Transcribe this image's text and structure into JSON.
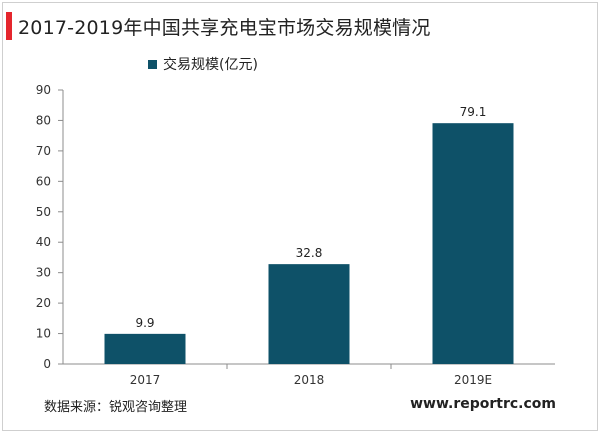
{
  "title": "2017-2019年中国共享充电宝市场交易规模情况",
  "source": "数据来源：锐观咨询整理",
  "website": "www.reportrc.com",
  "colors": {
    "bar": "#0e5168",
    "accent": "#e5262d"
  },
  "chart_data": {
    "type": "bar",
    "title": "2017-2019年中国共享充电宝市场交易规模情况",
    "categories": [
      "2017",
      "2018",
      "2019E"
    ],
    "series": [
      {
        "name": "交易规模(亿元)",
        "values": [
          9.9,
          32.8,
          79.1
        ]
      }
    ],
    "value_labels": [
      "9.9",
      "32.8",
      "79.1"
    ],
    "ylim": [
      0,
      90
    ],
    "yticks": [
      0,
      10,
      20,
      30,
      40,
      50,
      60,
      70,
      80,
      90
    ],
    "grid": false,
    "legend": "top-left"
  }
}
